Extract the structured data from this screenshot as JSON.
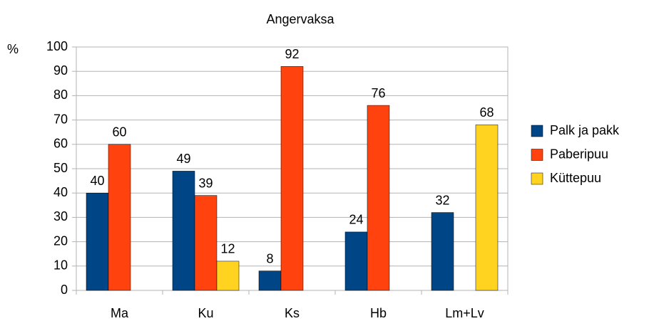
{
  "chart_data": {
    "type": "bar",
    "title": "Angervaksa",
    "y_label": "%",
    "categories": [
      "Ma",
      "Ku",
      "Ks",
      "Hb",
      "Lm+Lv"
    ],
    "series": [
      {
        "name": "Palk ja pakk",
        "color": "#004586",
        "values": [
          40,
          49,
          8,
          24,
          32
        ]
      },
      {
        "name": "Paberipuu",
        "color": "#ff420e",
        "values": [
          60,
          39,
          92,
          76,
          null
        ]
      },
      {
        "name": "Küttepuu",
        "color": "#ffd320",
        "values": [
          null,
          12,
          null,
          null,
          68
        ]
      }
    ],
    "ylim": [
      0,
      100
    ],
    "yticks": [
      0,
      10,
      20,
      30,
      40,
      50,
      60,
      70,
      80,
      90,
      100
    ],
    "grid": true,
    "legend": "right"
  }
}
